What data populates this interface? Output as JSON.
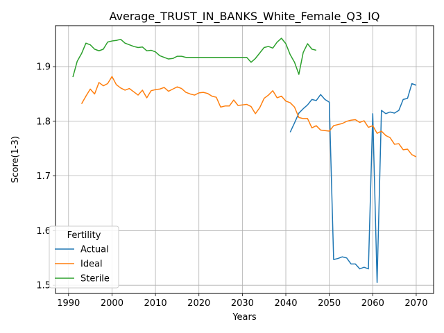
{
  "chart_data": {
    "type": "line",
    "title": "Average_TRUST_IN_BANKS_White_Female_Q3_IQ",
    "xlabel": "Years",
    "ylabel": "Score(1-3)",
    "xlim": [
      1987,
      2074
    ],
    "ylim": [
      1.485,
      1.975
    ],
    "xticks": [
      1990,
      2000,
      2010,
      2020,
      2030,
      2040,
      2050,
      2060,
      2070
    ],
    "yticks": [
      1.5,
      1.6,
      1.7,
      1.8,
      1.9
    ],
    "ytick_labels": [
      "1.5",
      "1.6",
      "1.7",
      "1.8",
      "1.9"
    ],
    "grid": true,
    "legend": {
      "title": "Fertility",
      "placement": "lower-left"
    },
    "series": [
      {
        "name": "Actual",
        "color": "#1f77b4",
        "x": [
          2041,
          2042,
          2043,
          2044,
          2045,
          2046,
          2047,
          2048,
          2049,
          2050,
          2051,
          2052,
          2053,
          2054,
          2055,
          2056,
          2057,
          2058,
          2059,
          2060,
          2061,
          2062,
          2063,
          2064,
          2065,
          2066,
          2067,
          2068,
          2069,
          2070
        ],
        "y": [
          1.78,
          1.797,
          1.815,
          1.823,
          1.83,
          1.84,
          1.838,
          1.849,
          1.84,
          1.835,
          1.547,
          1.549,
          1.552,
          1.55,
          1.539,
          1.539,
          1.53,
          1.533,
          1.53,
          1.814,
          1.505,
          1.82,
          1.814,
          1.817,
          1.815,
          1.82,
          1.84,
          1.842,
          1.869,
          1.866
        ]
      },
      {
        "name": "Ideal",
        "color": "#ff7f0e",
        "x": [
          1993,
          1994,
          1995,
          1996,
          1997,
          1998,
          1999,
          2000,
          2001,
          2002,
          2003,
          2004,
          2005,
          2006,
          2007,
          2008,
          2009,
          2010,
          2011,
          2012,
          2013,
          2014,
          2015,
          2016,
          2017,
          2018,
          2019,
          2020,
          2021,
          2022,
          2023,
          2024,
          2025,
          2026,
          2027,
          2028,
          2029,
          2030,
          2031,
          2032,
          2033,
          2034,
          2035,
          2036,
          2037,
          2038,
          2039,
          2040,
          2041,
          2042,
          2043,
          2044,
          2045,
          2046,
          2047,
          2048,
          2049,
          2050,
          2051,
          2052,
          2053,
          2054,
          2055,
          2056,
          2057,
          2058,
          2059,
          2060,
          2061,
          2062,
          2063,
          2064,
          2065,
          2066,
          2067,
          2068,
          2069,
          2070
        ],
        "y": [
          1.832,
          1.846,
          1.859,
          1.85,
          1.871,
          1.865,
          1.869,
          1.882,
          1.867,
          1.861,
          1.857,
          1.86,
          1.854,
          1.848,
          1.857,
          1.843,
          1.856,
          1.858,
          1.859,
          1.862,
          1.855,
          1.859,
          1.863,
          1.86,
          1.853,
          1.85,
          1.848,
          1.852,
          1.853,
          1.851,
          1.846,
          1.844,
          1.826,
          1.828,
          1.828,
          1.839,
          1.829,
          1.83,
          1.831,
          1.827,
          1.814,
          1.825,
          1.842,
          1.848,
          1.856,
          1.843,
          1.846,
          1.837,
          1.834,
          1.826,
          1.807,
          1.805,
          1.805,
          1.788,
          1.792,
          1.784,
          1.783,
          1.782,
          1.792,
          1.794,
          1.796,
          1.8,
          1.802,
          1.803,
          1.798,
          1.801,
          1.789,
          1.792,
          1.778,
          1.782,
          1.774,
          1.77,
          1.758,
          1.759,
          1.748,
          1.749,
          1.739,
          1.735
        ]
      },
      {
        "name": "Sterile",
        "color": "#2ca02c",
        "x": [
          1991,
          1992,
          1993,
          1994,
          1995,
          1996,
          1997,
          1998,
          1999,
          2000,
          2001,
          2002,
          2003,
          2004,
          2005,
          2006,
          2007,
          2008,
          2009,
          2010,
          2011,
          2012,
          2013,
          2014,
          2015,
          2016,
          2017,
          2018,
          2019,
          2020,
          2021,
          2022,
          2023,
          2024,
          2025,
          2026,
          2027,
          2028,
          2029,
          2030,
          2031,
          2032,
          2033,
          2034,
          2035,
          2036,
          2037,
          2038,
          2039,
          2040,
          2041,
          2042,
          2043,
          2044,
          2045,
          2046,
          2047
        ],
        "y": [
          1.881,
          1.91,
          1.924,
          1.943,
          1.94,
          1.932,
          1.929,
          1.932,
          1.945,
          1.947,
          1.948,
          1.95,
          1.943,
          1.94,
          1.937,
          1.935,
          1.936,
          1.929,
          1.93,
          1.927,
          1.92,
          1.917,
          1.914,
          1.915,
          1.919,
          1.919,
          1.917,
          1.917,
          1.917,
          1.917,
          1.917,
          1.917,
          1.917,
          1.917,
          1.917,
          1.917,
          1.917,
          1.917,
          1.917,
          1.917,
          1.917,
          1.908,
          1.915,
          1.925,
          1.935,
          1.937,
          1.934,
          1.945,
          1.952,
          1.942,
          1.922,
          1.908,
          1.886,
          1.926,
          1.942,
          1.932,
          1.93
        ]
      }
    ]
  }
}
